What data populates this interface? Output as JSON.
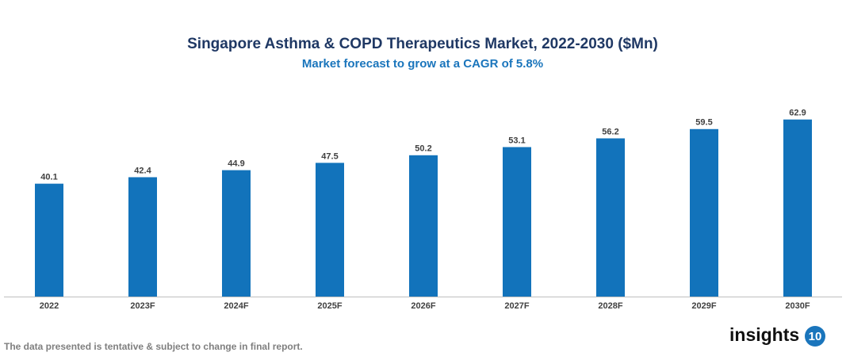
{
  "chart_data": {
    "type": "bar",
    "title": "Singapore Asthma & COPD Therapeutics Market, 2022-2030 ($Mn)",
    "subtitle": "Market forecast to grow at a CAGR of 5.8%",
    "categories": [
      "2022",
      "2023F",
      "2024F",
      "2025F",
      "2026F",
      "2027F",
      "2028F",
      "2029F",
      "2030F"
    ],
    "values": [
      40.1,
      42.4,
      44.9,
      47.5,
      50.2,
      53.1,
      56.2,
      59.5,
      62.9
    ],
    "color": "#1273bb",
    "ylim": [
      0,
      70
    ],
    "grid": false
  },
  "footer": {
    "note": "The data presented is tentative & subject to change in final report.",
    "logo_text": "insights",
    "logo_number": "10"
  }
}
